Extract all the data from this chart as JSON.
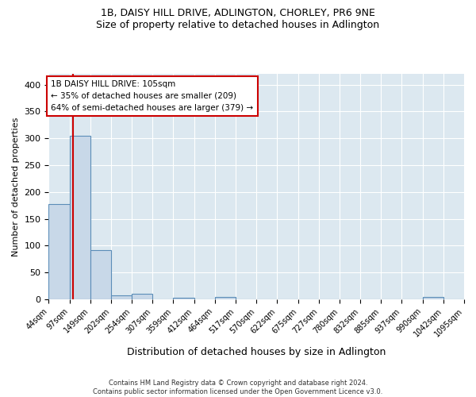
{
  "title_line1": "1B, DAISY HILL DRIVE, ADLINGTON, CHORLEY, PR6 9NE",
  "title_line2": "Size of property relative to detached houses in Adlington",
  "xlabel": "Distribution of detached houses by size in Adlington",
  "ylabel": "Number of detached properties",
  "bar_edges": [
    44,
    97,
    149,
    202,
    254,
    307,
    359,
    412,
    464,
    517,
    570,
    622,
    675,
    727,
    780,
    832,
    885,
    937,
    990,
    1042,
    1095
  ],
  "bar_heights": [
    177,
    305,
    92,
    8,
    10,
    0,
    3,
    0,
    4,
    0,
    0,
    0,
    0,
    0,
    0,
    0,
    0,
    0,
    4,
    0
  ],
  "bar_color": "#c8d8e8",
  "bar_edgecolor": "#5b8db8",
  "property_size": 105,
  "property_label": "1B DAISY HILL DRIVE: 105sqm",
  "annotation_line1": "← 35% of detached houses are smaller (209)",
  "annotation_line2": "64% of semi-detached houses are larger (379) →",
  "vline_color": "#cc0000",
  "annotation_box_edgecolor": "#cc0000",
  "annotation_box_facecolor": "#ffffff",
  "ylim": [
    0,
    420
  ],
  "yticks": [
    0,
    50,
    100,
    150,
    200,
    250,
    300,
    350,
    400
  ],
  "background_color": "#dce8f0",
  "grid_color": "#ffffff",
  "footer_line1": "Contains HM Land Registry data © Crown copyright and database right 2024.",
  "footer_line2": "Contains public sector information licensed under the Open Government Licence v3.0."
}
